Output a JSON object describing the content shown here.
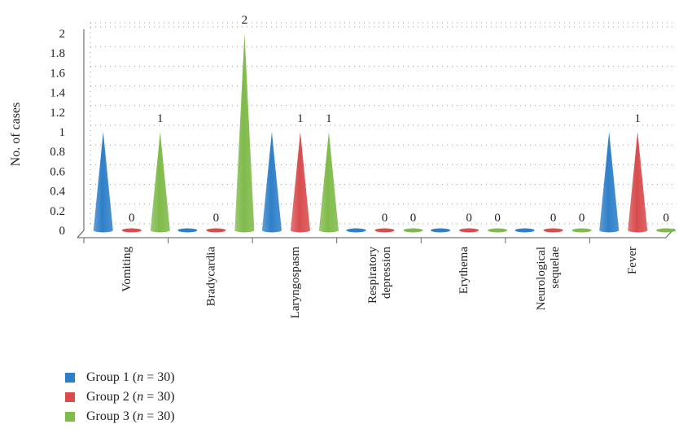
{
  "chart_data": {
    "type": "bar",
    "ylabel": "No. of cases",
    "xlabel": "",
    "ylim": [
      0,
      2
    ],
    "yticks": [
      "0",
      "0.2",
      "0.4",
      "0.6",
      "0.8",
      "1",
      "1.2",
      "1.4",
      "1.6",
      "1.8",
      "2"
    ],
    "grid": true,
    "legend_position": "bottom-left",
    "categories": [
      [
        "Vomiting"
      ],
      [
        "Bradycardia"
      ],
      [
        "Laryngospasm"
      ],
      [
        "Respiratory",
        "depression"
      ],
      [
        "Erythema"
      ],
      [
        "Neurological",
        "sequelae"
      ],
      [
        "Fever"
      ]
    ],
    "series": [
      {
        "name": "Group 1",
        "n_label": "n",
        "n_value": "30",
        "color": "#2f7fc8",
        "values": [
          1,
          0,
          1,
          0,
          0,
          0,
          1
        ]
      },
      {
        "name": "Group 2",
        "n_label": "n",
        "n_value": "30",
        "color": "#d84c4e",
        "values": [
          0,
          0,
          1,
          0,
          0,
          0,
          1
        ]
      },
      {
        "name": "Group 3",
        "n_label": "n",
        "n_value": "30",
        "color": "#7fba4a",
        "values": [
          1,
          2,
          1,
          0,
          0,
          0,
          0
        ]
      }
    ],
    "data_labels": [
      {
        "category": 0,
        "series": 1,
        "text": "0"
      },
      {
        "category": 0,
        "series": 2,
        "text": "1"
      },
      {
        "category": 1,
        "series": 1,
        "text": "0"
      },
      {
        "category": 1,
        "series": 2,
        "text": "2"
      },
      {
        "category": 2,
        "series": 1,
        "text": "1"
      },
      {
        "category": 2,
        "series": 2,
        "text": "1"
      },
      {
        "category": 3,
        "series": 1,
        "text": "0"
      },
      {
        "category": 3,
        "series": 2,
        "text": "0"
      },
      {
        "category": 4,
        "series": 1,
        "text": "0"
      },
      {
        "category": 4,
        "series": 2,
        "text": "0"
      },
      {
        "category": 5,
        "series": 1,
        "text": "0"
      },
      {
        "category": 5,
        "series": 2,
        "text": "0"
      },
      {
        "category": 6,
        "series": 1,
        "text": "1"
      },
      {
        "category": 6,
        "series": 2,
        "text": "0"
      }
    ]
  }
}
